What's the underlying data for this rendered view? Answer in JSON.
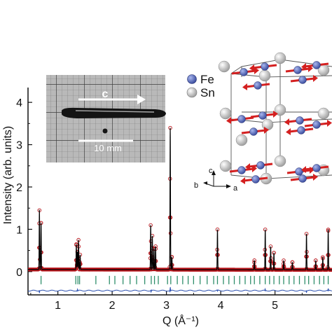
{
  "chart_data": {
    "type": "line",
    "xlabel": "Q (Å⁻¹)",
    "ylabel": "Intensity (arb. units)",
    "xlim": [
      0.45,
      6.05
    ],
    "ylim": [
      -0.55,
      4.35
    ],
    "xticks": [
      "1",
      "2",
      "3",
      "4",
      "5"
    ],
    "yticks": [
      "0",
      "1",
      "2",
      "3",
      "4"
    ],
    "peaks": [
      {
        "q": 0.66,
        "h": 1.4
      },
      {
        "q": 0.69,
        "h": 1.1
      },
      {
        "q": 1.34,
        "h": 0.6
      },
      {
        "q": 1.36,
        "h": 0.42
      },
      {
        "q": 1.38,
        "h": 0.7
      },
      {
        "q": 1.41,
        "h": 0.35
      },
      {
        "q": 2.71,
        "h": 1.05
      },
      {
        "q": 2.74,
        "h": 0.8
      },
      {
        "q": 2.77,
        "h": 0.5
      },
      {
        "q": 2.8,
        "h": 0.55
      },
      {
        "q": 3.07,
        "h": 3.35
      },
      {
        "q": 3.1,
        "h": 0.3
      },
      {
        "q": 3.94,
        "h": 0.95
      },
      {
        "q": 4.62,
        "h": 0.22
      },
      {
        "q": 4.82,
        "h": 0.95
      },
      {
        "q": 4.92,
        "h": 0.55
      },
      {
        "q": 4.98,
        "h": 0.4
      },
      {
        "q": 5.16,
        "h": 0.22
      },
      {
        "q": 5.32,
        "h": 0.18
      },
      {
        "q": 5.58,
        "h": 0.85
      },
      {
        "q": 5.75,
        "h": 0.22
      },
      {
        "q": 5.88,
        "h": 0.3
      },
      {
        "q": 5.98,
        "h": 0.95
      }
    ],
    "bragg_ticks": [
      0.69,
      1.33,
      1.37,
      1.4,
      1.7,
      1.95,
      2.05,
      2.2,
      2.33,
      2.45,
      2.6,
      2.72,
      2.78,
      2.85,
      3.02,
      3.08,
      3.2,
      3.3,
      3.4,
      3.5,
      3.62,
      3.75,
      3.87,
      3.94,
      4.05,
      4.15,
      4.25,
      4.35,
      4.45,
      4.55,
      4.62,
      4.72,
      4.82,
      4.9,
      4.98,
      5.08,
      5.16,
      5.26,
      5.35,
      5.45,
      5.55,
      5.62,
      5.72,
      5.82,
      5.9,
      5.98
    ],
    "diff_spikes": [
      {
        "q": 0.66,
        "d": -0.05
      },
      {
        "q": 1.36,
        "d": 0.04
      },
      {
        "q": 2.72,
        "d": -0.04
      },
      {
        "q": 3.07,
        "d": 0.1
      },
      {
        "q": 3.94,
        "d": -0.03
      },
      {
        "q": 4.82,
        "d": 0.04
      },
      {
        "q": 5.58,
        "d": -0.04
      },
      {
        "q": 5.98,
        "d": 0.05
      }
    ],
    "baseline_intensity": 0.05,
    "bragg_level": -0.2,
    "difference_level": -0.45,
    "colors": {
      "observed": "#b8151b",
      "calculated": "#000000",
      "bragg": "#2f8f6b",
      "difference": "#2a4fb0",
      "axis": "#111111"
    }
  },
  "inset_photo": {
    "axis_label": "c",
    "scale_label": "10 mm"
  },
  "structure_inset": {
    "legend": [
      {
        "label": "Fe",
        "color": "#5b6fc0"
      },
      {
        "label": "Sn",
        "color": "#c8c8c8"
      }
    ],
    "axes": {
      "c": "c",
      "b": "b",
      "a": "a"
    },
    "moment_color": "#d42020"
  }
}
